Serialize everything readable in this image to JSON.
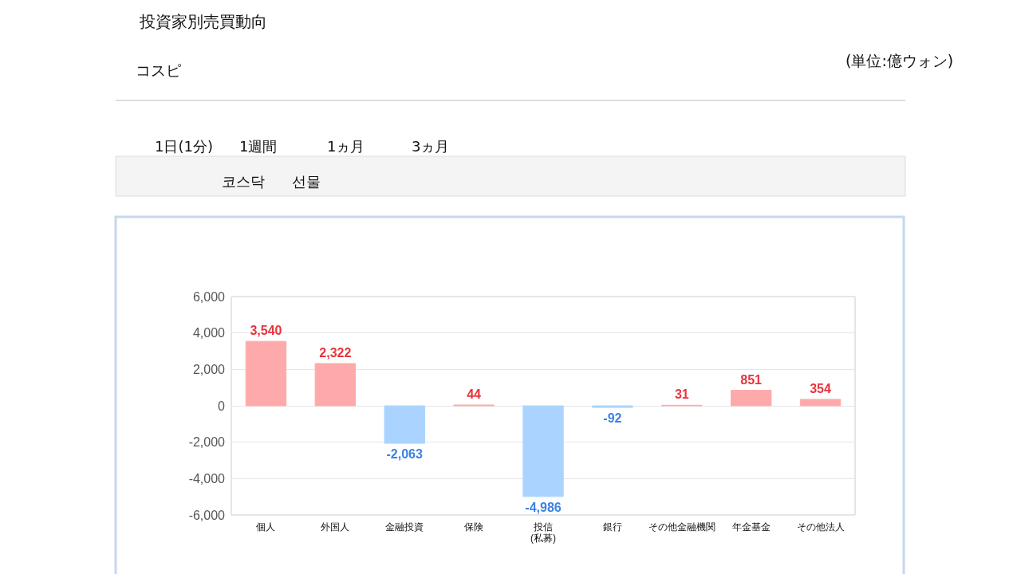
{
  "chart_data": {
    "type": "bar",
    "title": "投資家別売買動向",
    "annotations": [
      "(単位:億ウォン)",
      "コスピ",
      "코스닥",
      "선물",
      "1日(1分)",
      "1週間",
      "1ヵ月",
      "3ヵ月"
    ],
    "categories": [
      "個人",
      "外国人",
      "金融投資",
      "保険",
      "投信\n(私募)",
      "銀行",
      "その他金融機関",
      "年金基金",
      "その他法人"
    ],
    "values": [
      3540,
      2322,
      -2063,
      44,
      -4986,
      -92,
      31,
      851,
      354
    ],
    "colors": [
      "#ffaaaa",
      "#ffaaaa",
      "#aad4ff",
      "#ffaaaa",
      "#aad4ff",
      "#aad4ff",
      "#ffaaaa",
      "#ffaaaa",
      "#ffaaaa"
    ],
    "value_labels": [
      "3,540",
      "2,322",
      "-2,063",
      "44",
      "-4,986",
      "-92",
      "31",
      "851",
      "354"
    ],
    "ylim": [
      -6000,
      6000
    ],
    "yticks": [
      {
        "value": -6000,
        "label": "-6,000"
      },
      {
        "value": -4000,
        "label": "-4,000"
      },
      {
        "value": -2000,
        "label": "-2,000"
      },
      0,
      {
        "value": 2000,
        "label": "2,000"
      },
      {
        "value": 4000,
        "label": "4,000"
      },
      {
        "value": 6000,
        "label": "6,000"
      }
    ],
    "grid": "y"
  }
}
